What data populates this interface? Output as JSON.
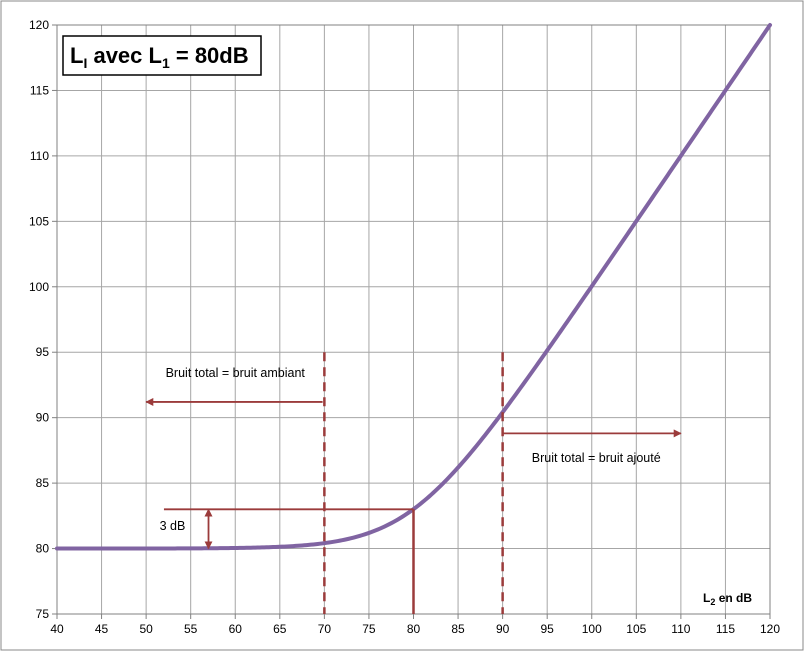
{
  "chart_data": {
    "type": "line",
    "title": {
      "main": "L",
      "main_sub": "I",
      "middle": " avec L",
      "middle_sub": "1",
      "tail": " = 80dB"
    },
    "xlabel": {
      "main": "L",
      "sub": "2",
      "tail": " en dB"
    },
    "ylabel": "",
    "xlim": [
      40,
      120
    ],
    "ylim": [
      75,
      120
    ],
    "x_ticks": [
      40,
      45,
      50,
      55,
      60,
      65,
      70,
      75,
      80,
      85,
      90,
      95,
      100,
      105,
      110,
      115,
      120
    ],
    "y_ticks": [
      75,
      80,
      85,
      90,
      95,
      100,
      105,
      110,
      115,
      120
    ],
    "grid": true,
    "legend": "none",
    "series": [
      {
        "formula": "10*log10(10^(L1/10) + 10^(L2/10))",
        "L1": 80,
        "color": "#8064a2",
        "x": [
          40,
          45,
          50,
          55,
          60,
          65,
          70,
          72,
          74,
          76,
          78,
          80,
          82,
          84,
          86,
          88,
          90,
          92,
          94,
          96,
          98,
          100,
          105,
          110,
          115,
          120
        ],
        "y": [
          80.0,
          80.0,
          80.0,
          80.01,
          80.04,
          80.13,
          80.41,
          80.64,
          80.97,
          81.46,
          82.12,
          83.01,
          84.12,
          85.46,
          86.97,
          88.64,
          90.41,
          92.27,
          94.17,
          96.11,
          98.07,
          100.04,
          105.01,
          110.0,
          115.0,
          120.0
        ]
      }
    ],
    "annotations": {
      "dashed_lines": [
        {
          "x": 70,
          "y_from": 75,
          "y_to": 95,
          "color": "#9b3b3b"
        },
        {
          "x": 90,
          "y_from": 75,
          "y_to": 95,
          "color": "#9b3b3b"
        }
      ],
      "solid_lines": [
        {
          "x": 80,
          "y_from": 75,
          "y_to": 83.0,
          "color": "#9b3b3b"
        },
        {
          "x_from": 52,
          "x_to": 80,
          "y": 83.0,
          "color": "#9b3b3b"
        }
      ],
      "arrows": [
        {
          "x_from": 69.8,
          "x_to": 50,
          "y": 91.2,
          "color": "#9b3b3b"
        },
        {
          "x_from": 90,
          "x_to": 110,
          "y": 88.8,
          "color": "#9b3b3b"
        },
        {
          "x": 57,
          "y_from": 80,
          "y_to": 83,
          "double": true,
          "color": "#9b3b3b"
        }
      ],
      "labels": {
        "ambient": "Bruit total = bruit ambiant",
        "added": "Bruit total = bruit ajouté",
        "delta": "3 dB"
      }
    }
  }
}
